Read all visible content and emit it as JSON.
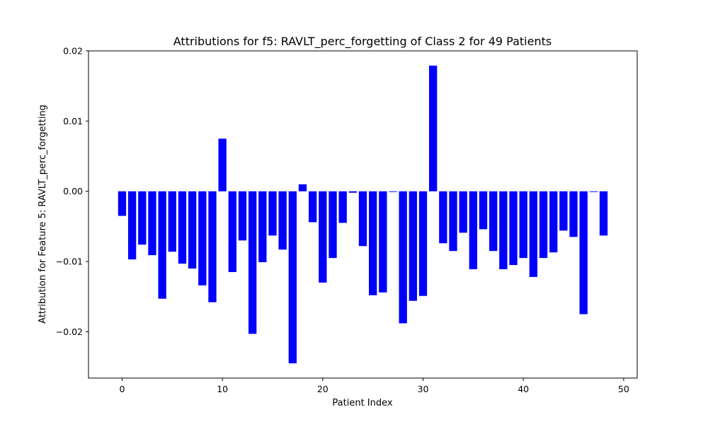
{
  "chart_data": {
    "type": "bar",
    "title": "Attributions for f5: RAVLT_perc_forgetting of Class 2 for 49 Patients",
    "xlabel": "Patient Index",
    "ylabel": "Attribution for Feature 5: RAVLT_perc_forgetting",
    "bar_color": "#0000ff",
    "xlim": [
      -3.35,
      51.35
    ],
    "ylim": [
      -0.0266,
      0.02
    ],
    "xticks": [
      0,
      10,
      20,
      30,
      40,
      50
    ],
    "xtick_labels": [
      "0",
      "10",
      "20",
      "30",
      "40",
      "50"
    ],
    "yticks": [
      -0.02,
      -0.01,
      0.0,
      0.01,
      0.02
    ],
    "ytick_labels": [
      "−0.02",
      "−0.01",
      "0.00",
      "0.01",
      "0.02"
    ],
    "grid": false,
    "legend": false,
    "x": [
      0,
      1,
      2,
      3,
      4,
      5,
      6,
      7,
      8,
      9,
      10,
      11,
      12,
      13,
      14,
      15,
      16,
      17,
      18,
      19,
      20,
      21,
      22,
      23,
      24,
      25,
      26,
      27,
      28,
      29,
      30,
      31,
      32,
      33,
      34,
      35,
      36,
      37,
      38,
      39,
      40,
      41,
      42,
      43,
      44,
      45,
      46,
      47,
      48
    ],
    "values": [
      -0.0035,
      -0.0097,
      -0.0076,
      -0.0091,
      -0.0153,
      -0.0086,
      -0.0103,
      -0.011,
      -0.0134,
      -0.0158,
      0.0075,
      -0.0115,
      -0.007,
      -0.0203,
      -0.0101,
      -0.0063,
      -0.0083,
      -0.0245,
      0.001,
      -0.0044,
      -0.013,
      -0.0095,
      -0.0045,
      -0.0002,
      -0.0078,
      -0.0148,
      -0.0144,
      -0.0001,
      -0.0188,
      -0.0156,
      -0.0149,
      0.0179,
      -0.0074,
      -0.0085,
      -0.0059,
      -0.0111,
      -0.0054,
      -0.0085,
      -0.0111,
      -0.0105,
      -0.0095,
      -0.0122,
      -0.0095,
      -0.0087,
      -0.0056,
      -0.0065,
      -0.0175,
      -0.0001,
      -0.0063
    ]
  }
}
